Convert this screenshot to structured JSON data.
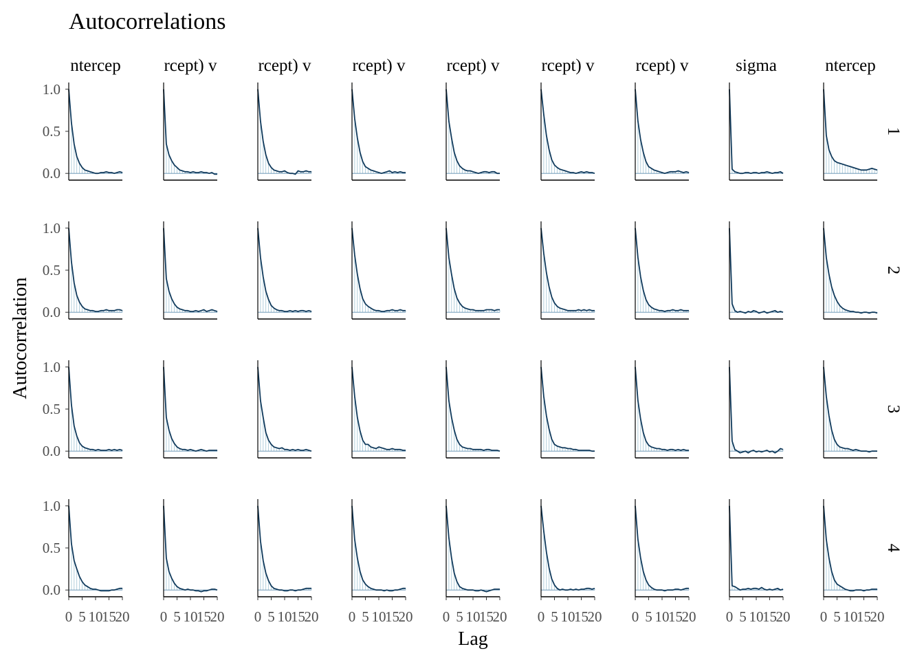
{
  "chart_data": {
    "type": "line",
    "title": "Autocorrelations",
    "xlabel": "Lag",
    "ylabel": "Autocorrelation",
    "x_ticks": [
      0,
      5,
      10,
      15,
      20
    ],
    "x_tick_labels": [
      "0",
      "5",
      "10",
      "15",
      "20"
    ],
    "xlim": [
      0,
      20
    ],
    "y_ticks": [
      0,
      0.5,
      1
    ],
    "y_tick_labels": [
      "0.0",
      "0.5",
      "1.0"
    ],
    "ylim": [
      -0.08,
      1.08
    ],
    "lags": [
      0,
      1,
      2,
      3,
      4,
      5,
      6,
      7,
      8,
      9,
      10,
      11,
      12,
      13,
      14,
      15,
      16,
      17,
      18,
      19,
      20
    ],
    "column_labels": [
      "ntercep",
      "rcept) v",
      "rcept) v",
      "rcept) v",
      "rcept) v",
      "rcept) v",
      "rcept) v",
      "sigma",
      "ntercep"
    ],
    "chain_labels": [
      "1",
      "2",
      "3",
      "4"
    ],
    "colors": {
      "line": "#103a5c",
      "bar": "#9fc3d3",
      "zero": "#5b8bad",
      "axis": "#000000"
    },
    "panels": [
      [
        [
          1.0,
          0.6,
          0.35,
          0.2,
          0.12,
          0.07,
          0.04,
          0.03,
          0.02,
          0.01,
          0.0,
          0.0,
          0.01,
          0.01,
          0.02,
          0.01,
          0.01,
          0.0,
          0.01,
          0.02,
          0.01
        ],
        [
          1.0,
          0.35,
          0.22,
          0.15,
          0.1,
          0.07,
          0.04,
          0.03,
          0.02,
          0.02,
          0.01,
          0.02,
          0.01,
          0.01,
          0.02,
          0.01,
          0.01,
          0.0,
          0.01,
          -0.01,
          -0.01
        ],
        [
          1.0,
          0.62,
          0.38,
          0.22,
          0.12,
          0.07,
          0.04,
          0.03,
          0.02,
          0.02,
          0.03,
          0.01,
          0.0,
          0.0,
          -0.01,
          0.03,
          0.02,
          0.02,
          0.03,
          0.02,
          0.02
        ],
        [
          1.0,
          0.65,
          0.42,
          0.25,
          0.14,
          0.08,
          0.06,
          0.04,
          0.03,
          0.02,
          0.01,
          0.0,
          0.01,
          0.02,
          0.03,
          0.01,
          0.02,
          0.01,
          0.02,
          0.01,
          0.01
        ],
        [
          1.0,
          0.62,
          0.42,
          0.25,
          0.15,
          0.09,
          0.06,
          0.04,
          0.03,
          0.03,
          0.02,
          0.01,
          0.0,
          0.01,
          0.02,
          0.02,
          0.01,
          0.02,
          0.02,
          0.0,
          0.0
        ],
        [
          1.0,
          0.7,
          0.45,
          0.28,
          0.16,
          0.1,
          0.07,
          0.05,
          0.04,
          0.03,
          0.02,
          0.01,
          0.01,
          0.0,
          0.01,
          0.02,
          0.01,
          0.02,
          0.01,
          0.01,
          0.0
        ],
        [
          1.0,
          0.62,
          0.4,
          0.25,
          0.14,
          0.08,
          0.06,
          0.04,
          0.03,
          0.02,
          0.01,
          0.0,
          0.01,
          0.02,
          0.02,
          0.02,
          0.03,
          0.02,
          0.01,
          0.02,
          0.01
        ],
        [
          1.0,
          0.05,
          0.02,
          0.01,
          0.0,
          0.0,
          0.01,
          0.01,
          0.0,
          0.01,
          0.01,
          0.0,
          0.01,
          0.01,
          0.02,
          0.01,
          0.0,
          0.01,
          0.01,
          0.02,
          0.0
        ],
        [
          1.0,
          0.45,
          0.28,
          0.2,
          0.15,
          0.13,
          0.12,
          0.11,
          0.1,
          0.09,
          0.08,
          0.07,
          0.06,
          0.05,
          0.04,
          0.04,
          0.04,
          0.05,
          0.06,
          0.05,
          0.04
        ]
      ],
      [
        [
          1.0,
          0.6,
          0.35,
          0.2,
          0.12,
          0.07,
          0.04,
          0.03,
          0.02,
          0.02,
          0.01,
          0.01,
          0.02,
          0.02,
          0.03,
          0.02,
          0.02,
          0.02,
          0.03,
          0.03,
          0.02
        ],
        [
          1.0,
          0.4,
          0.25,
          0.16,
          0.1,
          0.06,
          0.04,
          0.03,
          0.02,
          0.02,
          0.01,
          0.01,
          0.02,
          0.01,
          0.02,
          0.03,
          0.01,
          0.02,
          0.03,
          0.02,
          0.01
        ],
        [
          1.0,
          0.65,
          0.42,
          0.25,
          0.15,
          0.08,
          0.05,
          0.03,
          0.02,
          0.02,
          0.01,
          0.01,
          0.02,
          0.01,
          0.02,
          0.01,
          0.02,
          0.02,
          0.01,
          0.02,
          0.01
        ],
        [
          1.0,
          0.68,
          0.45,
          0.28,
          0.16,
          0.1,
          0.07,
          0.05,
          0.03,
          0.02,
          0.02,
          0.01,
          0.01,
          0.02,
          0.02,
          0.03,
          0.02,
          0.02,
          0.03,
          0.02,
          0.02
        ],
        [
          1.0,
          0.65,
          0.45,
          0.28,
          0.17,
          0.11,
          0.07,
          0.05,
          0.04,
          0.03,
          0.03,
          0.02,
          0.02,
          0.02,
          0.02,
          0.03,
          0.03,
          0.03,
          0.02,
          0.03,
          0.03
        ],
        [
          1.0,
          0.7,
          0.47,
          0.3,
          0.18,
          0.11,
          0.07,
          0.05,
          0.04,
          0.03,
          0.02,
          0.02,
          0.02,
          0.02,
          0.03,
          0.02,
          0.03,
          0.02,
          0.03,
          0.02,
          0.02
        ],
        [
          1.0,
          0.65,
          0.42,
          0.26,
          0.15,
          0.09,
          0.06,
          0.04,
          0.03,
          0.02,
          0.02,
          0.01,
          0.02,
          0.02,
          0.03,
          0.02,
          0.02,
          0.03,
          0.02,
          0.02,
          0.02
        ],
        [
          1.0,
          0.1,
          0.02,
          0.0,
          0.01,
          0.0,
          -0.01,
          0.01,
          0.0,
          0.02,
          0.01,
          -0.01,
          0.0,
          0.01,
          -0.01,
          0.0,
          0.01,
          0.02,
          0.0,
          0.01,
          0.0
        ],
        [
          1.0,
          0.65,
          0.45,
          0.3,
          0.2,
          0.13,
          0.08,
          0.05,
          0.03,
          0.02,
          0.01,
          0.01,
          0.0,
          0.0,
          -0.01,
          0.0,
          0.0,
          -0.01,
          0.0,
          0.0,
          -0.01
        ]
      ],
      [
        [
          1.0,
          0.55,
          0.3,
          0.18,
          0.1,
          0.06,
          0.04,
          0.03,
          0.02,
          0.02,
          0.01,
          0.02,
          0.01,
          0.01,
          0.01,
          0.02,
          0.01,
          0.02,
          0.01,
          0.02,
          0.01
        ],
        [
          1.0,
          0.4,
          0.25,
          0.15,
          0.09,
          0.05,
          0.03,
          0.02,
          0.02,
          0.01,
          0.02,
          0.01,
          0.0,
          0.01,
          0.02,
          0.01,
          0.0,
          0.01,
          0.01,
          0.01,
          0.01
        ],
        [
          1.0,
          0.6,
          0.4,
          0.22,
          0.13,
          0.08,
          0.05,
          0.04,
          0.03,
          0.04,
          0.02,
          0.02,
          0.01,
          0.02,
          0.01,
          0.02,
          0.01,
          0.01,
          0.02,
          0.01,
          0.0
        ],
        [
          1.0,
          0.65,
          0.4,
          0.24,
          0.13,
          0.08,
          0.08,
          0.05,
          0.04,
          0.03,
          0.05,
          0.04,
          0.03,
          0.02,
          0.02,
          0.03,
          0.02,
          0.02,
          0.02,
          0.01,
          0.01
        ],
        [
          1.0,
          0.6,
          0.4,
          0.25,
          0.14,
          0.08,
          0.05,
          0.04,
          0.03,
          0.03,
          0.02,
          0.02,
          0.02,
          0.02,
          0.01,
          0.02,
          0.02,
          0.01,
          0.01,
          0.01,
          0.0
        ],
        [
          1.0,
          0.65,
          0.42,
          0.26,
          0.14,
          0.08,
          0.06,
          0.05,
          0.04,
          0.04,
          0.03,
          0.03,
          0.02,
          0.02,
          0.01,
          0.01,
          0.01,
          0.01,
          0.01,
          0.0,
          0.0
        ],
        [
          1.0,
          0.6,
          0.38,
          0.22,
          0.12,
          0.07,
          0.05,
          0.04,
          0.03,
          0.03,
          0.02,
          0.02,
          0.01,
          0.02,
          0.02,
          0.01,
          0.02,
          0.01,
          0.02,
          0.01,
          0.01
        ],
        [
          1.0,
          0.12,
          0.02,
          0.0,
          -0.02,
          -0.01,
          0.0,
          -0.02,
          0.0,
          0.01,
          -0.01,
          0.0,
          -0.01,
          0.0,
          0.01,
          -0.01,
          0.0,
          -0.02,
          0.0,
          0.03,
          0.02
        ],
        [
          1.0,
          0.65,
          0.42,
          0.25,
          0.14,
          0.08,
          0.05,
          0.04,
          0.03,
          0.03,
          0.02,
          0.01,
          0.02,
          0.01,
          0.0,
          0.0,
          0.0,
          -0.01,
          0.0,
          0.0,
          0.0
        ]
      ],
      [
        [
          1.0,
          0.55,
          0.35,
          0.25,
          0.16,
          0.1,
          0.06,
          0.04,
          0.02,
          0.01,
          0.01,
          0.0,
          -0.01,
          -0.01,
          -0.01,
          -0.01,
          0.0,
          0.0,
          0.01,
          0.02,
          0.02
        ],
        [
          1.0,
          0.38,
          0.22,
          0.14,
          0.08,
          0.04,
          0.02,
          0.01,
          0.0,
          0.01,
          0.0,
          0.0,
          -0.01,
          -0.01,
          -0.02,
          -0.01,
          -0.01,
          0.0,
          0.01,
          0.01,
          0.0
        ],
        [
          1.0,
          0.58,
          0.35,
          0.2,
          0.11,
          0.05,
          0.02,
          0.01,
          0.0,
          0.0,
          -0.01,
          -0.01,
          0.0,
          0.0,
          -0.01,
          0.0,
          0.0,
          0.01,
          0.02,
          0.02,
          0.02
        ],
        [
          1.0,
          0.6,
          0.38,
          0.22,
          0.12,
          0.07,
          0.04,
          0.02,
          0.01,
          0.0,
          0.0,
          0.0,
          -0.01,
          0.0,
          -0.01,
          -0.01,
          0.0,
          0.0,
          0.01,
          0.02,
          0.02
        ],
        [
          1.0,
          0.62,
          0.38,
          0.2,
          0.1,
          0.04,
          0.02,
          0.01,
          0.0,
          0.0,
          0.0,
          -0.01,
          -0.01,
          0.0,
          -0.01,
          -0.02,
          -0.01,
          0.0,
          0.01,
          0.01,
          0.01
        ],
        [
          1.0,
          0.7,
          0.45,
          0.26,
          0.13,
          0.06,
          0.02,
          0.0,
          0.01,
          0.0,
          0.0,
          0.01,
          0.0,
          0.01,
          0.0,
          0.01,
          0.01,
          0.02,
          0.02,
          0.01,
          0.02
        ],
        [
          1.0,
          0.6,
          0.38,
          0.22,
          0.12,
          0.06,
          0.03,
          0.01,
          0.0,
          0.0,
          0.0,
          -0.01,
          0.0,
          0.0,
          0.0,
          0.01,
          0.01,
          0.0,
          0.01,
          0.02,
          0.02
        ],
        [
          1.0,
          0.05,
          0.04,
          0.02,
          0.0,
          0.01,
          0.01,
          0.02,
          0.01,
          0.02,
          0.02,
          0.01,
          0.03,
          0.01,
          0.0,
          0.01,
          0.0,
          0.01,
          0.02,
          0.0,
          0.01
        ],
        [
          1.0,
          0.6,
          0.38,
          0.22,
          0.12,
          0.07,
          0.05,
          0.03,
          0.01,
          0.0,
          -0.01,
          -0.01,
          0.0,
          0.0,
          0.0,
          -0.01,
          0.0,
          0.0,
          0.01,
          0.01,
          0.01
        ]
      ]
    ]
  }
}
